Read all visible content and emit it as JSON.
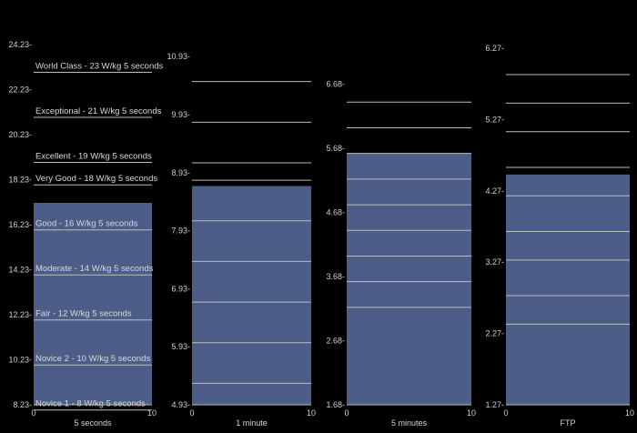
{
  "colors": {
    "background": "#000000",
    "bar": "#4c5d87",
    "text": "#d0d0d0",
    "line": "#bdbdbd"
  },
  "chart_data": [
    {
      "type": "bar",
      "xlabel": "5 seconds",
      "xticks": [
        "0",
        "10"
      ],
      "value": 17.2,
      "ylim": [
        8.23,
        25.0
      ],
      "yticks": [
        "8.23",
        "10.23",
        "12.23",
        "14.23",
        "16.23",
        "18.23",
        "20.23",
        "22.23",
        "24.23"
      ],
      "levels": [
        {
          "value": 23,
          "label": "World Class - 23 W/kg 5 seconds"
        },
        {
          "value": 21,
          "label": "Exceptional - 21 W/kg 5 seconds"
        },
        {
          "value": 19,
          "label": "Excellent - 19 W/kg 5 seconds"
        },
        {
          "value": 18,
          "label": "Very Good - 18 W/kg 5 seconds"
        },
        {
          "value": 16,
          "label": "Good - 16 W/kg 5 seconds"
        },
        {
          "value": 14,
          "label": "Moderate - 14 W/kg 5 seconds"
        },
        {
          "value": 12,
          "label": "Fair - 12 W/kg 5 seconds"
        },
        {
          "value": 10,
          "label": "Novice 2 - 10 W/kg 5 seconds"
        },
        {
          "value": 8,
          "label": "Novice 1 - 8 W/kg 5 seconds"
        }
      ]
    },
    {
      "type": "bar",
      "xlabel": "1 minute",
      "xticks": [
        "0",
        "10"
      ],
      "value": 8.7,
      "ylim": [
        4.93,
        11.2
      ],
      "yticks": [
        "4.93",
        "5.93",
        "6.93",
        "7.93",
        "8.93",
        "9.93",
        "10.93"
      ],
      "levels": [
        {
          "value": 10.5,
          "label": ""
        },
        {
          "value": 9.8,
          "label": ""
        },
        {
          "value": 9.1,
          "label": ""
        },
        {
          "value": 8.8,
          "label": ""
        },
        {
          "value": 8.1,
          "label": ""
        },
        {
          "value": 7.4,
          "label": ""
        },
        {
          "value": 6.7,
          "label": ""
        },
        {
          "value": 6.0,
          "label": ""
        },
        {
          "value": 5.3,
          "label": ""
        }
      ]
    },
    {
      "type": "bar",
      "xlabel": "5 minutes",
      "xticks": [
        "0",
        "10"
      ],
      "value": 5.6,
      "ylim": [
        1.68,
        7.0
      ],
      "yticks": [
        "1.68",
        "2.68",
        "3.68",
        "4.68",
        "5.68",
        "6.68"
      ],
      "levels": [
        {
          "value": 6.4,
          "label": ""
        },
        {
          "value": 6.0,
          "label": ""
        },
        {
          "value": 5.6,
          "label": ""
        },
        {
          "value": 5.2,
          "label": ""
        },
        {
          "value": 4.8,
          "label": ""
        },
        {
          "value": 4.4,
          "label": ""
        },
        {
          "value": 4.0,
          "label": ""
        },
        {
          "value": 3.6,
          "label": ""
        },
        {
          "value": 3.2,
          "label": ""
        }
      ]
    },
    {
      "type": "bar",
      "xlabel": "FTP",
      "xticks": [
        "0",
        "10"
      ],
      "value": 4.5,
      "ylim": [
        1.27,
        6.5
      ],
      "yticks": [
        "1.27",
        "2.27",
        "3.27",
        "4.27",
        "5.27",
        "6.27"
      ],
      "levels": [
        {
          "value": 5.9,
          "label": ""
        },
        {
          "value": 5.5,
          "label": ""
        },
        {
          "value": 5.1,
          "label": ""
        },
        {
          "value": 4.6,
          "label": ""
        },
        {
          "value": 4.2,
          "label": ""
        },
        {
          "value": 3.7,
          "label": ""
        },
        {
          "value": 3.3,
          "label": ""
        },
        {
          "value": 2.8,
          "label": ""
        },
        {
          "value": 2.4,
          "label": ""
        }
      ]
    }
  ]
}
